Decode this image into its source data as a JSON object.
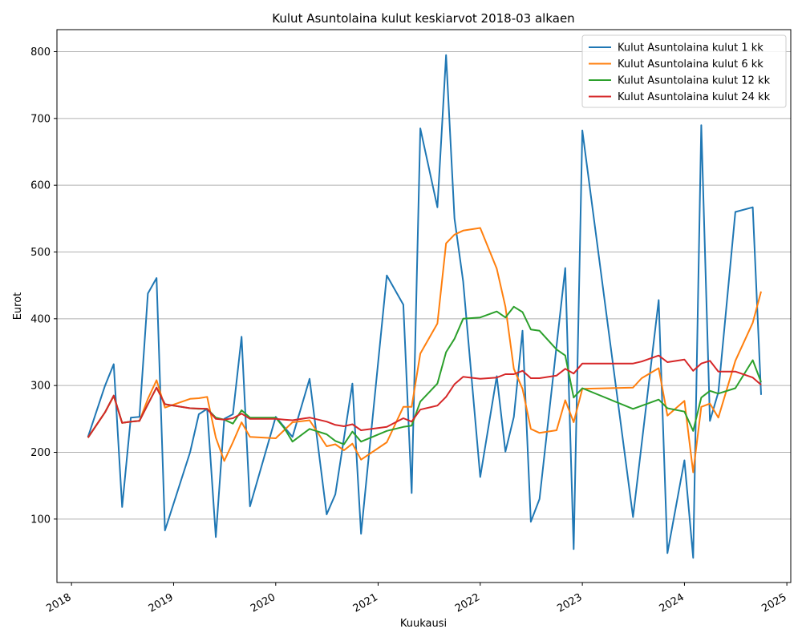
{
  "chart_data": {
    "type": "line",
    "title": "Kulut Asuntolaina kulut keskiarvot 2018-03 alkaen",
    "xlabel": "Kuukausi",
    "ylabel": "Eurot",
    "xlim": [
      "2017-11-10",
      "2025-01-15"
    ],
    "ylim": [
      5,
      833
    ],
    "x_ticks": [
      {
        "date": "2018-01-01",
        "label": "2018"
      },
      {
        "date": "2019-01-01",
        "label": "2019"
      },
      {
        "date": "2020-01-01",
        "label": "2020"
      },
      {
        "date": "2021-01-01",
        "label": "2021"
      },
      {
        "date": "2022-01-01",
        "label": "2022"
      },
      {
        "date": "2023-01-01",
        "label": "2023"
      },
      {
        "date": "2024-01-01",
        "label": "2024"
      },
      {
        "date": "2025-01-01",
        "label": "2025"
      }
    ],
    "y_ticks": [
      100,
      200,
      300,
      400,
      500,
      600,
      700,
      800
    ],
    "grid": "y",
    "legend_position": "top-right",
    "series": [
      {
        "name": "Kulut Asuntolaina kulut 1 kk",
        "color": "#1f77b4",
        "points": [
          [
            "2018-03-01",
            223
          ],
          [
            "2018-05-01",
            300
          ],
          [
            "2018-06-01",
            332
          ],
          [
            "2018-07-01",
            118
          ],
          [
            "2018-08-01",
            252
          ],
          [
            "2018-09-01",
            253
          ],
          [
            "2018-10-01",
            438
          ],
          [
            "2018-11-01",
            461
          ],
          [
            "2018-12-01",
            83
          ],
          [
            "2019-03-01",
            200
          ],
          [
            "2019-04-01",
            257
          ],
          [
            "2019-05-01",
            265
          ],
          [
            "2019-06-01",
            73
          ],
          [
            "2019-07-01",
            250
          ],
          [
            "2019-08-01",
            257
          ],
          [
            "2019-09-01",
            373
          ],
          [
            "2019-10-01",
            119
          ],
          [
            "2020-01-01",
            253
          ],
          [
            "2020-03-01",
            223
          ],
          [
            "2020-05-01",
            310
          ],
          [
            "2020-07-01",
            107
          ],
          [
            "2020-08-01",
            137
          ],
          [
            "2020-10-01",
            303
          ],
          [
            "2020-11-01",
            78
          ],
          [
            "2021-02-01",
            465
          ],
          [
            "2021-04-01",
            421
          ],
          [
            "2021-05-01",
            139
          ],
          [
            "2021-06-01",
            685
          ],
          [
            "2021-08-01",
            567
          ],
          [
            "2021-09-01",
            795
          ],
          [
            "2021-10-01",
            550
          ],
          [
            "2021-11-01",
            456
          ],
          [
            "2022-01-01",
            163
          ],
          [
            "2022-03-01",
            314
          ],
          [
            "2022-04-01",
            201
          ],
          [
            "2022-05-01",
            253
          ],
          [
            "2022-06-01",
            382
          ],
          [
            "2022-07-01",
            96
          ],
          [
            "2022-08-01",
            130
          ],
          [
            "2022-11-01",
            476
          ],
          [
            "2022-12-01",
            55
          ],
          [
            "2023-01-01",
            682
          ],
          [
            "2023-07-01",
            103
          ],
          [
            "2023-10-01",
            428
          ],
          [
            "2023-11-01",
            49
          ],
          [
            "2024-01-01",
            188
          ],
          [
            "2024-02-01",
            42
          ],
          [
            "2024-03-01",
            690
          ],
          [
            "2024-04-01",
            247
          ],
          [
            "2024-05-01",
            290
          ],
          [
            "2024-07-01",
            560
          ],
          [
            "2024-09-01",
            567
          ],
          [
            "2024-10-01",
            286
          ]
        ]
      },
      {
        "name": "Kulut Asuntolaina kulut 6 kk",
        "color": "#ff7f0e",
        "points": [
          [
            "2018-03-01",
            222
          ],
          [
            "2018-05-01",
            260
          ],
          [
            "2018-06-01",
            284
          ],
          [
            "2018-07-01",
            244
          ],
          [
            "2018-08-01",
            246
          ],
          [
            "2018-09-01",
            247
          ],
          [
            "2018-10-01",
            280
          ],
          [
            "2018-11-01",
            308
          ],
          [
            "2018-12-01",
            267
          ],
          [
            "2019-03-01",
            280
          ],
          [
            "2019-04-01",
            281
          ],
          [
            "2019-05-01",
            283
          ],
          [
            "2019-06-01",
            222
          ],
          [
            "2019-07-01",
            187
          ],
          [
            "2019-08-01",
            215
          ],
          [
            "2019-09-01",
            245
          ],
          [
            "2019-10-01",
            223
          ],
          [
            "2020-01-01",
            221
          ],
          [
            "2020-03-01",
            245
          ],
          [
            "2020-05-01",
            248
          ],
          [
            "2020-07-01",
            209
          ],
          [
            "2020-08-01",
            212
          ],
          [
            "2020-09-01",
            203
          ],
          [
            "2020-10-01",
            213
          ],
          [
            "2020-11-01",
            189
          ],
          [
            "2021-02-01",
            215
          ],
          [
            "2021-04-01",
            268
          ],
          [
            "2021-05-01",
            268
          ],
          [
            "2021-06-01",
            348
          ],
          [
            "2021-08-01",
            393
          ],
          [
            "2021-09-01",
            513
          ],
          [
            "2021-10-01",
            526
          ],
          [
            "2021-11-01",
            532
          ],
          [
            "2022-01-01",
            536
          ],
          [
            "2022-03-01",
            475
          ],
          [
            "2022-04-01",
            418
          ],
          [
            "2022-05-01",
            325
          ],
          [
            "2022-06-01",
            295
          ],
          [
            "2022-07-01",
            235
          ],
          [
            "2022-08-01",
            229
          ],
          [
            "2022-10-01",
            233
          ],
          [
            "2022-11-01",
            278
          ],
          [
            "2022-12-01",
            245
          ],
          [
            "2023-01-01",
            295
          ],
          [
            "2023-07-01",
            297
          ],
          [
            "2023-08-01",
            311
          ],
          [
            "2023-10-01",
            326
          ],
          [
            "2023-11-01",
            255
          ],
          [
            "2024-01-01",
            277
          ],
          [
            "2024-02-01",
            170
          ],
          [
            "2024-03-01",
            268
          ],
          [
            "2024-04-01",
            273
          ],
          [
            "2024-05-01",
            252
          ],
          [
            "2024-07-01",
            337
          ],
          [
            "2024-09-01",
            394
          ],
          [
            "2024-10-01",
            441
          ]
        ]
      },
      {
        "name": "Kulut Asuntolaina kulut 12 kk",
        "color": "#2ca02c",
        "points": [
          [
            "2018-03-01",
            222
          ],
          [
            "2018-05-01",
            260
          ],
          [
            "2018-06-01",
            285
          ],
          [
            "2018-07-01",
            244
          ],
          [
            "2018-08-01",
            246
          ],
          [
            "2018-09-01",
            247
          ],
          [
            "2018-10-01",
            272
          ],
          [
            "2018-11-01",
            297
          ],
          [
            "2018-12-01",
            272
          ],
          [
            "2019-03-01",
            266
          ],
          [
            "2019-04-01",
            265
          ],
          [
            "2019-05-01",
            265
          ],
          [
            "2019-06-01",
            252
          ],
          [
            "2019-07-01",
            249
          ],
          [
            "2019-08-01",
            243
          ],
          [
            "2019-09-01",
            263
          ],
          [
            "2019-10-01",
            252
          ],
          [
            "2020-01-01",
            252
          ],
          [
            "2020-02-01",
            236
          ],
          [
            "2020-03-01",
            216
          ],
          [
            "2020-05-01",
            235
          ],
          [
            "2020-07-01",
            227
          ],
          [
            "2020-08-01",
            217
          ],
          [
            "2020-09-01",
            212
          ],
          [
            "2020-10-01",
            231
          ],
          [
            "2020-11-01",
            216
          ],
          [
            "2021-02-01",
            232
          ],
          [
            "2021-04-01",
            238
          ],
          [
            "2021-05-01",
            240
          ],
          [
            "2021-06-01",
            276
          ],
          [
            "2021-08-01",
            303
          ],
          [
            "2021-09-01",
            350
          ],
          [
            "2021-10-01",
            370
          ],
          [
            "2021-11-01",
            400
          ],
          [
            "2022-01-01",
            402
          ],
          [
            "2022-03-01",
            411
          ],
          [
            "2022-04-01",
            402
          ],
          [
            "2022-05-01",
            418
          ],
          [
            "2022-06-01",
            410
          ],
          [
            "2022-07-01",
            384
          ],
          [
            "2022-08-01",
            382
          ],
          [
            "2022-10-01",
            354
          ],
          [
            "2022-11-01",
            345
          ],
          [
            "2022-12-01",
            282
          ],
          [
            "2023-01-01",
            296
          ],
          [
            "2023-07-01",
            265
          ],
          [
            "2023-10-01",
            279
          ],
          [
            "2023-11-01",
            266
          ],
          [
            "2024-01-01",
            261
          ],
          [
            "2024-02-01",
            232
          ],
          [
            "2024-03-01",
            282
          ],
          [
            "2024-04-01",
            292
          ],
          [
            "2024-05-01",
            288
          ],
          [
            "2024-07-01",
            296
          ],
          [
            "2024-09-01",
            338
          ],
          [
            "2024-10-01",
            305
          ]
        ]
      },
      {
        "name": "Kulut Asuntolaina kulut 24 kk",
        "color": "#d62728",
        "points": [
          [
            "2018-03-01",
            222
          ],
          [
            "2018-05-01",
            260
          ],
          [
            "2018-06-01",
            285
          ],
          [
            "2018-07-01",
            244
          ],
          [
            "2018-08-01",
            246
          ],
          [
            "2018-09-01",
            247
          ],
          [
            "2018-10-01",
            272
          ],
          [
            "2018-11-01",
            297
          ],
          [
            "2018-12-01",
            272
          ],
          [
            "2019-03-01",
            266
          ],
          [
            "2019-05-01",
            265
          ],
          [
            "2019-06-01",
            250
          ],
          [
            "2019-07-01",
            249
          ],
          [
            "2019-08-01",
            251
          ],
          [
            "2019-09-01",
            258
          ],
          [
            "2019-10-01",
            250
          ],
          [
            "2020-01-01",
            250
          ],
          [
            "2020-02-01",
            249
          ],
          [
            "2020-03-01",
            248
          ],
          [
            "2020-05-01",
            252
          ],
          [
            "2020-07-01",
            246
          ],
          [
            "2020-08-01",
            241
          ],
          [
            "2020-09-01",
            239
          ],
          [
            "2020-10-01",
            242
          ],
          [
            "2020-11-01",
            233
          ],
          [
            "2021-02-01",
            238
          ],
          [
            "2021-04-01",
            251
          ],
          [
            "2021-05-01",
            246
          ],
          [
            "2021-06-01",
            264
          ],
          [
            "2021-08-01",
            270
          ],
          [
            "2021-09-01",
            283
          ],
          [
            "2021-10-01",
            302
          ],
          [
            "2021-11-01",
            313
          ],
          [
            "2022-01-01",
            310
          ],
          [
            "2022-03-01",
            312
          ],
          [
            "2022-04-01",
            317
          ],
          [
            "2022-05-01",
            317
          ],
          [
            "2022-06-01",
            322
          ],
          [
            "2022-07-01",
            311
          ],
          [
            "2022-08-01",
            311
          ],
          [
            "2022-10-01",
            315
          ],
          [
            "2022-11-01",
            325
          ],
          [
            "2022-12-01",
            318
          ],
          [
            "2023-01-01",
            333
          ],
          [
            "2023-07-01",
            333
          ],
          [
            "2023-08-01",
            336
          ],
          [
            "2023-10-01",
            345
          ],
          [
            "2023-11-01",
            335
          ],
          [
            "2024-01-01",
            339
          ],
          [
            "2024-02-01",
            322
          ],
          [
            "2024-03-01",
            333
          ],
          [
            "2024-04-01",
            337
          ],
          [
            "2024-05-01",
            321
          ],
          [
            "2024-07-01",
            321
          ],
          [
            "2024-09-01",
            312
          ],
          [
            "2024-10-01",
            301
          ]
        ]
      }
    ]
  }
}
